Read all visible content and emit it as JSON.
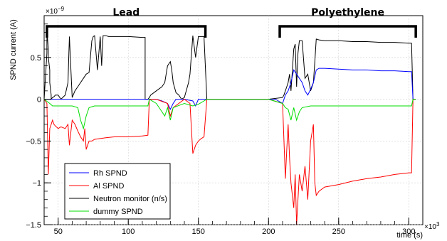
{
  "chart_data": {
    "type": "line",
    "ylabel": "SPND current (A)",
    "xlabel": "time (s)",
    "y_exponent_label": "×10",
    "y_exponent": "−9",
    "x_exponent_label": "×10",
    "x_exponent": "3",
    "xlim": [
      40,
      310
    ],
    "ylim": [
      -1.5,
      1.0
    ],
    "x_ticks": [
      50,
      100,
      150,
      200,
      250,
      300
    ],
    "y_ticks": [
      -1.5,
      -1,
      -0.5,
      0,
      0.5
    ],
    "y_tick_labels": [
      "−1.5",
      "−1",
      "−0.5",
      "0",
      "0.5"
    ],
    "x_tick_labels": [
      "50",
      "100",
      "150",
      "200",
      "250",
      "300"
    ],
    "regions": [
      {
        "label": "Lead",
        "x": [
          42,
          155
        ]
      },
      {
        "label": "Polyethylene",
        "x": [
          208,
          305
        ]
      }
    ],
    "legend": {
      "placement": "bottom-left",
      "entries": [
        "Rh SPND",
        "Al SPND",
        "Neutron monitor (n/s)",
        "dummy SPND"
      ]
    },
    "colors": {
      "Rh SPND": "#0000ff",
      "Al SPND": "#ff0000",
      "Neutron monitor (n/s)": "#000000",
      "dummy SPND": "#00dd00"
    },
    "series": [
      {
        "name": "Neutron monitor (n/s)",
        "x": [
          40,
          42,
          42,
          43,
          43,
          44,
          44,
          45,
          45,
          46,
          46,
          47,
          48,
          50,
          52,
          55,
          57,
          58,
          60,
          60,
          62,
          64,
          66,
          68,
          70,
          72,
          74,
          75,
          76,
          78,
          80,
          81,
          82,
          84,
          86,
          88,
          90,
          100,
          110,
          112,
          112,
          114,
          115,
          116,
          120,
          124,
          126,
          127,
          128,
          130,
          131,
          132,
          134,
          136,
          138,
          140,
          143,
          144,
          146,
          148,
          150,
          152,
          154,
          156,
          160,
          180,
          200,
          210,
          211,
          212,
          213,
          214,
          215,
          216,
          217,
          218,
          219,
          220,
          221,
          222,
          224,
          226,
          228,
          230,
          232,
          233,
          234,
          236,
          240,
          250,
          260,
          270,
          280,
          290,
          300,
          302,
          303,
          305
        ],
        "y": [
          0,
          0.55,
          0.82,
          0.6,
          0.5,
          0.35,
          0.2,
          0.05,
          0.0,
          0.02,
          0.02,
          0.03,
          0.05,
          0.05,
          0.0,
          0.05,
          0.2,
          0.75,
          0.02,
          0.02,
          0.1,
          0.15,
          0.2,
          0.25,
          0.3,
          0.32,
          0.7,
          0.75,
          0.76,
          0.35,
          0.75,
          0.4,
          0.76,
          0.76,
          0.75,
          0.75,
          0.75,
          0.75,
          0.74,
          0.74,
          0.0,
          0.0,
          0.02,
          0.05,
          0.1,
          0.15,
          0.2,
          0.3,
          0.4,
          0.45,
          0.35,
          0.2,
          0.08,
          0.05,
          0.0,
          0.02,
          0.2,
          0.3,
          0.76,
          0.5,
          0.75,
          0.75,
          0.75,
          0.0,
          0.0,
          0.0,
          0.0,
          0.02,
          0.05,
          0.1,
          0.15,
          0.2,
          0.3,
          0.1,
          0.35,
          0.6,
          0.66,
          0.15,
          0.55,
          0.7,
          0.7,
          0.25,
          0.3,
          0.1,
          0.2,
          0.45,
          0.72,
          0.71,
          0.7,
          0.7,
          0.69,
          0.69,
          0.68,
          0.68,
          0.67,
          0.67,
          0.0,
          0.0
        ]
      },
      {
        "name": "Rh SPND",
        "x": [
          40,
          120,
          124,
          128,
          130,
          132,
          134,
          140,
          146,
          148,
          150,
          160,
          205,
          210,
          212,
          214,
          216,
          218,
          220,
          222,
          224,
          226,
          228,
          230,
          232,
          234,
          236,
          240,
          250,
          260,
          270,
          280,
          290,
          300,
          302,
          303,
          305
        ],
        "y": [
          0,
          0,
          -0.02,
          -0.05,
          -0.12,
          -0.05,
          0.0,
          0.0,
          -0.02,
          -0.08,
          0.0,
          0.0,
          0.0,
          -0.05,
          0.05,
          0.1,
          0.2,
          0.35,
          0.3,
          0.25,
          0.2,
          0.1,
          0.05,
          0.12,
          0.2,
          0.35,
          0.37,
          0.37,
          0.36,
          0.35,
          0.35,
          0.34,
          0.34,
          0.33,
          0.33,
          0.0,
          0.0
        ]
      },
      {
        "name": "Al SPND",
        "x": [
          40,
          42,
          43,
          44,
          45,
          46,
          47,
          48,
          50,
          52,
          55,
          57,
          58,
          60,
          62,
          64,
          66,
          68,
          69,
          70,
          71,
          72,
          74,
          76,
          80,
          84,
          90,
          100,
          110,
          114,
          115,
          116,
          120,
          128,
          130,
          132,
          140,
          144,
          146,
          148,
          150,
          152,
          154,
          156,
          160,
          200,
          210,
          212,
          213,
          214,
          215,
          216,
          218,
          219,
          220,
          221,
          222,
          224,
          226,
          228,
          230,
          232,
          233,
          234,
          236,
          240,
          250,
          260,
          270,
          280,
          290,
          300,
          302,
          303,
          305
        ],
        "y": [
          0,
          -0.05,
          -0.9,
          -0.35,
          -0.3,
          -0.25,
          -0.3,
          -0.32,
          -0.35,
          -0.33,
          -0.35,
          -0.3,
          -0.55,
          -0.25,
          -0.3,
          -0.38,
          -0.45,
          -0.5,
          -0.35,
          -0.6,
          -0.55,
          -0.5,
          -0.5,
          -0.48,
          -0.47,
          -0.46,
          -0.45,
          -0.45,
          -0.44,
          -0.43,
          0.0,
          0.0,
          0.0,
          -0.05,
          -0.2,
          -0.1,
          0.0,
          -0.05,
          -0.65,
          -0.55,
          -0.5,
          -0.47,
          -0.45,
          0.0,
          0.0,
          0.0,
          -0.05,
          -0.95,
          -0.6,
          -0.3,
          -0.7,
          -1.0,
          -1.3,
          -0.9,
          -1.5,
          -1.2,
          -0.9,
          -1.1,
          -0.8,
          -1.2,
          -0.5,
          -0.3,
          -1.0,
          -1.15,
          -1.1,
          -1.05,
          -1.02,
          -0.98,
          -0.95,
          -0.93,
          -0.9,
          -0.88,
          -0.88,
          0.0,
          0.0
        ]
      },
      {
        "name": "dummy SPND",
        "x": [
          40,
          44,
          46,
          50,
          55,
          60,
          64,
          66,
          68,
          70,
          72,
          76,
          90,
          110,
          114,
          115,
          120,
          126,
          128,
          130,
          132,
          140,
          146,
          150,
          156,
          200,
          210,
          212,
          214,
          216,
          218,
          220,
          222,
          224,
          230,
          236,
          250,
          270,
          280,
          300,
          302,
          303,
          305
        ],
        "y": [
          0,
          -0.05,
          -0.08,
          -0.08,
          -0.08,
          -0.08,
          -0.1,
          -0.25,
          -0.35,
          -0.2,
          -0.1,
          -0.08,
          -0.08,
          -0.08,
          -0.08,
          0.0,
          -0.05,
          -0.2,
          -0.1,
          -0.25,
          -0.1,
          -0.05,
          -0.08,
          -0.06,
          0.0,
          0.0,
          -0.05,
          -0.1,
          -0.12,
          -0.25,
          -0.1,
          -0.25,
          -0.15,
          -0.1,
          -0.08,
          -0.08,
          -0.08,
          -0.08,
          -0.08,
          -0.08,
          -0.08,
          0.0,
          0.0
        ]
      }
    ]
  }
}
